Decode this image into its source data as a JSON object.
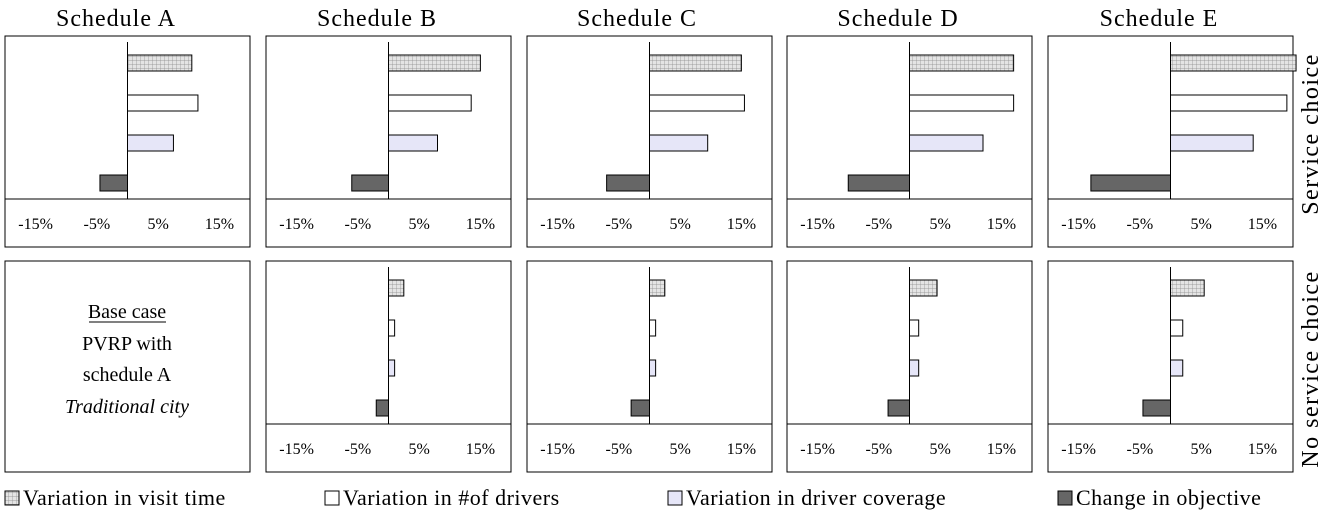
{
  "figure": {
    "columns": [
      "Schedule A",
      "Schedule B",
      "Schedule C",
      "Schedule D",
      "Schedule E"
    ],
    "rows": [
      "Service choice",
      "No service choice"
    ]
  },
  "base_case": {
    "title": "Base case",
    "line1": "PVRP with",
    "line2": "schedule A",
    "line3": "Traditional city"
  },
  "legend": {
    "items": [
      {
        "label": "Variation in visit time",
        "color": "#d9d9d9",
        "pattern": "grid"
      },
      {
        "label": "Variation in #of drivers",
        "color": "#ffffff",
        "pattern": "none"
      },
      {
        "label": "Variation in driver coverage",
        "color": "#e6e6f8",
        "pattern": "none"
      },
      {
        "label": "Change in objective",
        "color": "#666666",
        "pattern": "none"
      }
    ]
  },
  "chart_data": {
    "type": "bar",
    "orientation": "horizontal",
    "categories": [
      "Variation in visit time",
      "Variation in #of drivers",
      "Variation in driver coverage",
      "Change in objective"
    ],
    "xlim": [
      -20,
      20
    ],
    "xticks": [
      -15,
      -5,
      5,
      15
    ],
    "xtick_labels": [
      "-15%",
      "-5%",
      "5%",
      "15%"
    ],
    "units": "%",
    "panels": [
      {
        "column": "Schedule A",
        "row": "Service choice",
        "values": [
          10.5,
          11.5,
          7.5,
          -4.5
        ]
      },
      {
        "column": "Schedule B",
        "row": "Service choice",
        "values": [
          15.0,
          13.5,
          8.0,
          -6.0
        ]
      },
      {
        "column": "Schedule C",
        "row": "Service choice",
        "values": [
          15.0,
          15.5,
          9.5,
          -7.0
        ]
      },
      {
        "column": "Schedule D",
        "row": "Service choice",
        "values": [
          17.0,
          17.0,
          12.0,
          -10.0
        ]
      },
      {
        "column": "Schedule E",
        "row": "Service choice",
        "values": [
          20.5,
          19.0,
          13.5,
          -13.0
        ]
      },
      {
        "column": "Schedule A",
        "row": "No service choice",
        "base_case": true,
        "values": []
      },
      {
        "column": "Schedule B",
        "row": "No service choice",
        "values": [
          2.5,
          1.0,
          1.0,
          -2.0
        ]
      },
      {
        "column": "Schedule C",
        "row": "No service choice",
        "values": [
          2.5,
          1.0,
          1.0,
          -3.0
        ]
      },
      {
        "column": "Schedule D",
        "row": "No service choice",
        "values": [
          4.5,
          1.5,
          1.5,
          -3.5
        ]
      },
      {
        "column": "Schedule E",
        "row": "No service choice",
        "values": [
          5.5,
          2.0,
          2.0,
          -4.5
        ]
      }
    ]
  }
}
